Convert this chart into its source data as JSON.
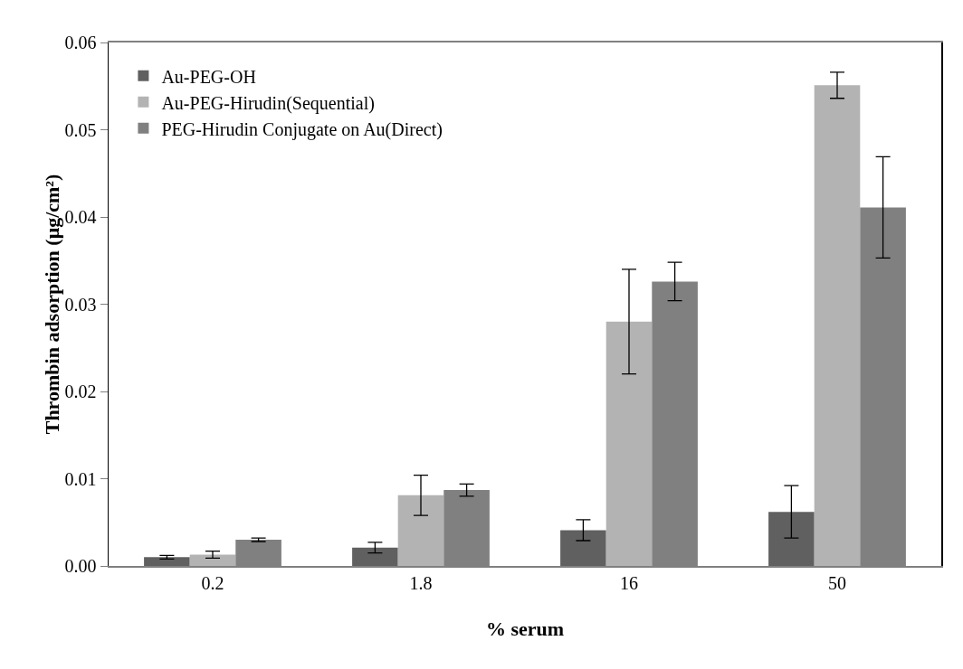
{
  "chart_data": {
    "type": "bar",
    "xlabel": "% serum",
    "ylabel": "Thrombin adsorption (μg/cm²)",
    "categories": [
      "0.2",
      "1.8",
      "16",
      "50"
    ],
    "series": [
      {
        "name": "Au-PEG-OH",
        "color": "#606060",
        "values": [
          0.001,
          0.0021,
          0.0041,
          0.0062
        ],
        "errors": [
          0.0002,
          0.0006,
          0.0012,
          0.003
        ]
      },
      {
        "name": "Au-PEG-Hirudin(Sequential)",
        "color": "#b3b3b3",
        "values": [
          0.0013,
          0.0081,
          0.028,
          0.0551
        ],
        "errors": [
          0.0004,
          0.0023,
          0.006,
          0.0015
        ]
      },
      {
        "name": "PEG-Hirudin Conjugate on Au(Direct)",
        "color": "#808080",
        "values": [
          0.003,
          0.0087,
          0.0326,
          0.0411
        ],
        "errors": [
          0.0002,
          0.0007,
          0.0022,
          0.0058
        ]
      }
    ],
    "ylim": [
      0,
      0.06
    ],
    "yticks": [
      {
        "value": 0,
        "label": "0.00"
      },
      {
        "value": 0.01,
        "label": "0.01"
      },
      {
        "value": 0.02,
        "label": "0.02"
      },
      {
        "value": 0.03,
        "label": "0.03"
      },
      {
        "value": 0.04,
        "label": "0.04"
      },
      {
        "value": 0.05,
        "label": "0.05"
      },
      {
        "value": 0.06,
        "label": "0.06"
      }
    ],
    "grid": false,
    "legend": "top left"
  }
}
